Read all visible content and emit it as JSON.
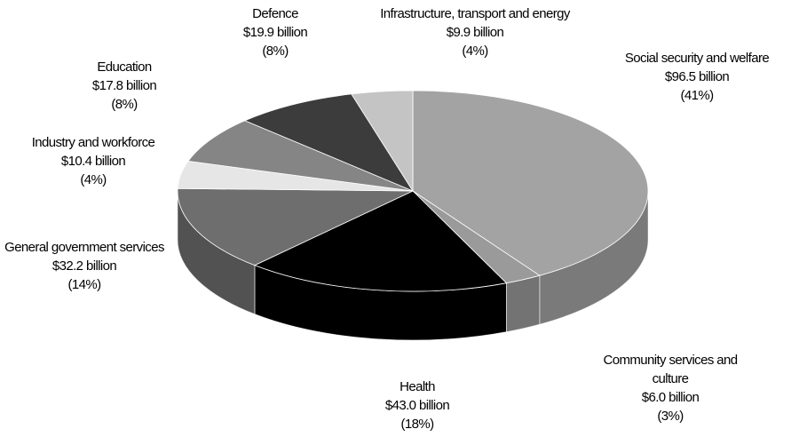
{
  "chart_data": {
    "type": "pie3d",
    "categories": [
      "Social security and welfare",
      "Community services and culture",
      "Health",
      "General government services",
      "Industry and workforce",
      "Education",
      "Defence",
      "Infrastructure, transport and energy"
    ],
    "values": [
      96.5,
      6.0,
      43.0,
      32.2,
      10.4,
      17.8,
      19.9,
      9.9
    ],
    "value_labels": [
      "$96.5 billion",
      "$6.0 billion",
      "$43.0 billion",
      "$32.2 billion",
      "$10.4 billion",
      "$17.8 billion",
      "$19.9 billion",
      "$9.9 billion"
    ],
    "percent_labels": [
      "(41%)",
      "(3%)",
      "(18%)",
      "(14%)",
      "(4%)",
      "(8%)",
      "(8%)",
      "(4%)"
    ],
    "colors": [
      "#a3a3a3",
      "#9a9a9a",
      "#000000",
      "#6e6e6e",
      "#e6e6e6",
      "#858585",
      "#3c3c3c",
      "#c4c4c4"
    ]
  }
}
